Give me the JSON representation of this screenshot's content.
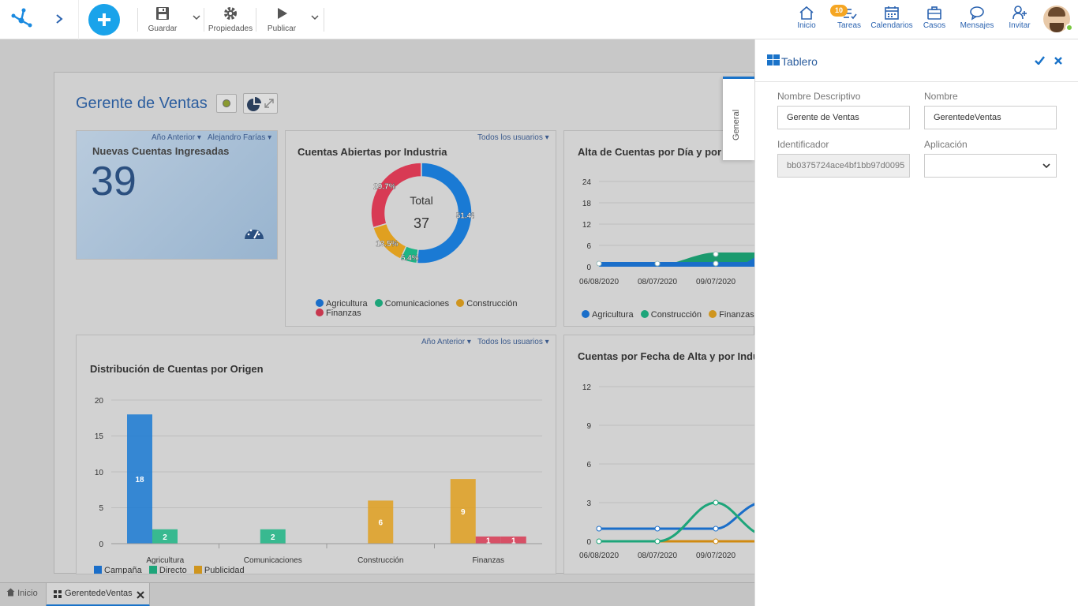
{
  "toolbar": {
    "save_label": "Guardar",
    "properties_label": "Propiedades",
    "publish_label": "Publicar"
  },
  "nav": {
    "home": "Inicio",
    "tasks": "Tareas",
    "tasks_badge": "10",
    "calendars": "Calendarios",
    "cases": "Casos",
    "messages": "Mensajes",
    "invite": "Invitar"
  },
  "dashboard": {
    "title": "Gerente de Ventas"
  },
  "kpi": {
    "filter_period": "Año Anterior",
    "filter_user": "Alejandro Farías",
    "title": "Nuevas Cuentas Ingresadas",
    "value": "39"
  },
  "donut": {
    "filter": "Todos los usuarios",
    "title": "Cuentas Abiertas por Industria",
    "center_label": "Total",
    "center_value": "37",
    "slice_labels": [
      "51.4%",
      "5.4%",
      "13.5%",
      "29.7%"
    ],
    "legend": [
      "Agricultura",
      "Comunicaciones",
      "Construcción",
      "Finanzas"
    ]
  },
  "area_chart": {
    "title": "Alta de Cuentas por Día y por I",
    "y_ticks": [
      "24",
      "18",
      "12",
      "6",
      "0"
    ],
    "x_ticks": [
      "06/08/2020",
      "08/07/2020",
      "09/07/2020"
    ],
    "legend": [
      "Agricultura",
      "Construcción",
      "Finanzas"
    ]
  },
  "bar_panel": {
    "filter_period": "Año Anterior",
    "filter_users": "Todos los usuarios",
    "title": "Distribución de Cuentas por Origen",
    "y_ticks": [
      "20",
      "15",
      "10",
      "5",
      "0"
    ],
    "legend": [
      "Campaña",
      "Directo",
      "Publicidad"
    ]
  },
  "line_chart": {
    "title": "Cuentas por Fecha de Alta y por Indus",
    "y_ticks": [
      "12",
      "9",
      "6",
      "3",
      "0"
    ],
    "x_ticks": [
      "06/08/2020",
      "08/07/2020",
      "09/07/2020"
    ]
  },
  "chart_data": [
    {
      "type": "bar",
      "title": "Distribución de Cuentas por Origen",
      "categories": [
        "Agricultura",
        "Comunicaciones",
        "Construcción",
        "Finanzas"
      ],
      "ylim": [
        0,
        20
      ],
      "series": [
        {
          "name": "Campaña",
          "values": [
            18,
            0,
            0,
            0
          ],
          "color": "#1a7ad4"
        },
        {
          "name": "Directo",
          "values": [
            2,
            2,
            0,
            0
          ],
          "color": "#1db585"
        },
        {
          "name": "Publicidad",
          "values": [
            0,
            0,
            6,
            9
          ],
          "color": "#e0a020"
        },
        {
          "name": "",
          "values": [
            0,
            0,
            0,
            1
          ],
          "color": "#d83a54"
        },
        {
          "name": "",
          "values": [
            0,
            0,
            0,
            1
          ],
          "color": "#d83a54"
        }
      ]
    },
    {
      "type": "pie",
      "title": "Cuentas Abiertas por Industria",
      "categories": [
        "Agricultura",
        "Comunicaciones",
        "Construcción",
        "Finanzas"
      ],
      "values": [
        51.4,
        5.4,
        13.5,
        29.7
      ],
      "colors": [
        "#1a7ad4",
        "#1db585",
        "#e0a020",
        "#d83a54"
      ]
    }
  ],
  "side_panel": {
    "title": "Tablero",
    "tab": "General",
    "descriptive_name_label": "Nombre Descriptivo",
    "descriptive_name_value": "Gerente de Ventas",
    "name_label": "Nombre",
    "name_value": "GerentedeVentas",
    "identifier_label": "Identificador",
    "identifier_value": "bb0375724ace4bf1bb97d0095",
    "application_label": "Aplicación",
    "application_value": ""
  },
  "bottom_tabs": {
    "home": "Inicio",
    "current": "GerentedeVentas"
  },
  "colors": {
    "accent": "#1a73c9",
    "title_blue": "#2b5d9e",
    "badge": "#f5a623"
  }
}
